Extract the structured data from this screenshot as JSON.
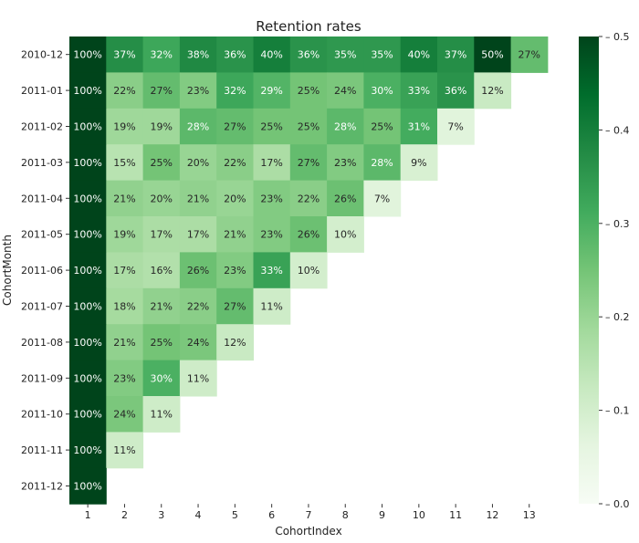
{
  "chart_data": {
    "type": "heatmap",
    "title": "Retention rates",
    "xlabel": "CohortIndex",
    "ylabel": "CohortMonth",
    "x_categories": [
      "1",
      "2",
      "3",
      "4",
      "5",
      "6",
      "7",
      "8",
      "9",
      "10",
      "11",
      "12",
      "13"
    ],
    "y_categories": [
      "2010-12",
      "2011-01",
      "2011-02",
      "2011-03",
      "2011-04",
      "2011-05",
      "2011-06",
      "2011-07",
      "2011-08",
      "2011-09",
      "2011-10",
      "2011-11",
      "2011-12"
    ],
    "values": [
      [
        100,
        37,
        32,
        38,
        36,
        40,
        36,
        35,
        35,
        40,
        37,
        50,
        27
      ],
      [
        100,
        22,
        27,
        23,
        32,
        29,
        25,
        24,
        30,
        33,
        36,
        12
      ],
      [
        100,
        19,
        19,
        28,
        27,
        25,
        25,
        28,
        25,
        31,
        7
      ],
      [
        100,
        15,
        25,
        20,
        22,
        17,
        27,
        23,
        28,
        9
      ],
      [
        100,
        21,
        20,
        21,
        20,
        23,
        22,
        26,
        7
      ],
      [
        100,
        19,
        17,
        17,
        21,
        23,
        26,
        10
      ],
      [
        100,
        17,
        16,
        26,
        23,
        33,
        10
      ],
      [
        100,
        18,
        21,
        22,
        27,
        11
      ],
      [
        100,
        21,
        25,
        24,
        12
      ],
      [
        100,
        23,
        30,
        11
      ],
      [
        100,
        24,
        11
      ],
      [
        100,
        11
      ],
      [
        100
      ]
    ],
    "value_format": "percent",
    "colorbar": {
      "range": [
        0,
        0.5
      ],
      "ticks": [
        "0.0",
        "0.1",
        "0.2",
        "0.3",
        "0.4",
        "0.5"
      ],
      "colormap": "Greens",
      "colors": [
        "#f7fcf5",
        "#e5f5e0",
        "#c7e9c0",
        "#a1d99b",
        "#74c476",
        "#41ab5d",
        "#238b45",
        "#006d2c",
        "#00441b"
      ]
    }
  }
}
